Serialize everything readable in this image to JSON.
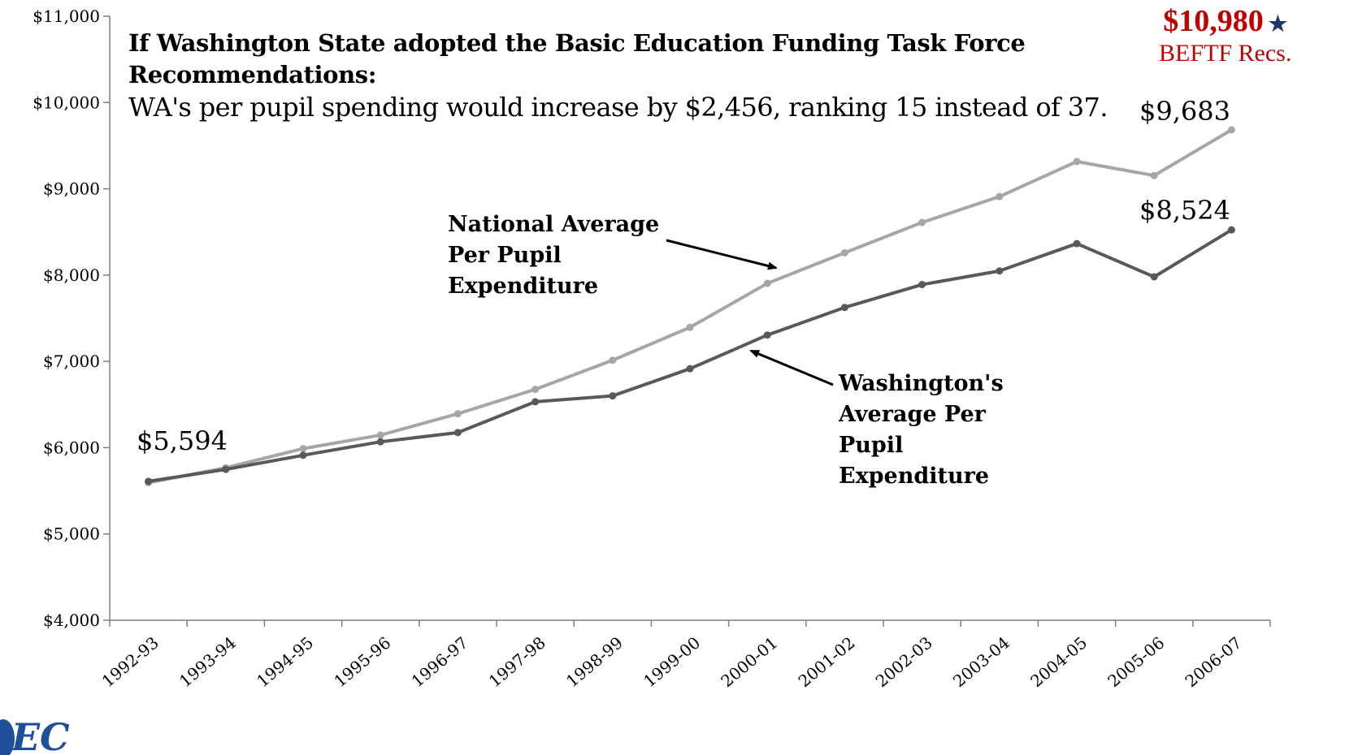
{
  "chart_data": {
    "type": "line",
    "title": "If Washington State adopted the Basic Education Funding Task Force Recommendations:",
    "subtitle": "WA's per pupil spending would increase by $2,456, ranking 15 instead of 37.",
    "xlabel": "",
    "ylabel": "",
    "ylim": [
      4000,
      11000
    ],
    "yticks": [
      "$4,000",
      "$5,000",
      "$6,000",
      "$7,000",
      "$8,000",
      "$9,000",
      "$10,000",
      "$11,000"
    ],
    "categories": [
      "1992-93",
      "1993-94",
      "1994-95",
      "1995-96",
      "1996-97",
      "1997-98",
      "1998-99",
      "1999-00",
      "2000-01",
      "2001-02",
      "2002-03",
      "2003-04",
      "2004-05",
      "2005-06",
      "2006-07"
    ],
    "series": [
      {
        "name": "National Average Per Pupil Expenditure",
        "color": "#a6a6a6",
        "values": [
          5594,
          5767,
          5989,
          6146,
          6393,
          6676,
          7013,
          7394,
          7904,
          8259,
          8610,
          8910,
          9316,
          9154,
          9683
        ]
      },
      {
        "name": "Washington's Average Per Pupil Expenditure",
        "color": "#595959",
        "values": [
          5610,
          5748,
          5912,
          6068,
          6175,
          6532,
          6600,
          6915,
          7305,
          7625,
          7890,
          8048,
          8365,
          7980,
          8524
        ]
      }
    ],
    "annotations": {
      "start_value": "$5,594",
      "national_end": "$9,683",
      "washington_end": "$8,524",
      "beftf_value": "$10,980",
      "beftf_label": "BEFTF Recs.",
      "beftf_star": "★"
    },
    "grid": false,
    "legend": "inline-annotations"
  },
  "logo": {
    "text": "EC",
    "icon": "logo-icon"
  }
}
